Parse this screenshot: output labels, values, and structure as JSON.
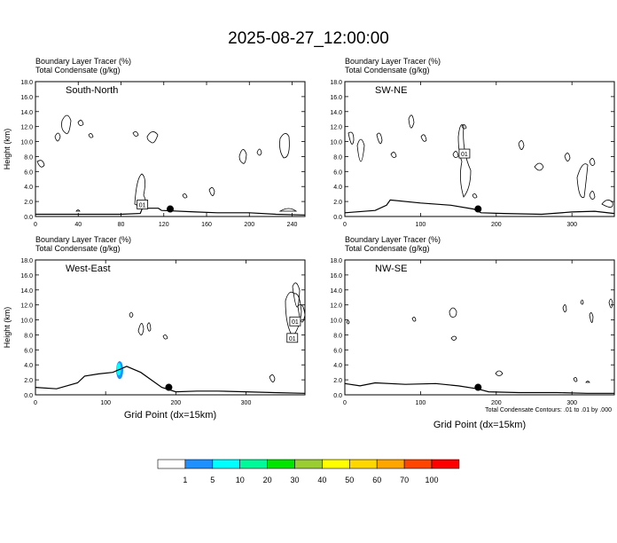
{
  "title": "2025-08-27_12:00:00",
  "footnote": "Total Condensate Contours: .01 to .01 by .000",
  "colorbar": {
    "colors": [
      "#ffffff",
      "#1e90ff",
      "#00ffff",
      "#00fa9a",
      "#00e600",
      "#9acd32",
      "#ffff00",
      "#ffd700",
      "#ffa500",
      "#ff4500",
      "#ff0000"
    ],
    "labels": [
      "1",
      "5",
      "10",
      "20",
      "30",
      "40",
      "50",
      "60",
      "70",
      "100"
    ]
  },
  "chart_data": [
    {
      "type": "contour",
      "header": [
        "Boundary Layer Tracer   (%)",
        "Total Condensate   (g/kg)"
      ],
      "panel_label": "South-North",
      "ylabel": "Height (km)",
      "xlabel": "",
      "xlim": [
        0,
        252
      ],
      "ylim": [
        0,
        18
      ],
      "xticks": [
        0,
        40,
        80,
        120,
        160,
        200,
        240
      ],
      "yticks": [
        "0.0",
        "2.0",
        "4.0",
        "6.0",
        "8.0",
        "10.0",
        "12.0",
        "14.0",
        "16.0",
        "18.0"
      ],
      "marker": {
        "x": 126,
        "y": 1.0
      },
      "boundary_layer": [
        [
          0,
          0.3
        ],
        [
          40,
          0.3
        ],
        [
          80,
          0.3
        ],
        [
          98,
          0.4
        ],
        [
          100,
          1.1
        ],
        [
          115,
          1.1
        ],
        [
          118,
          0.8
        ],
        [
          150,
          0.6
        ],
        [
          170,
          0.5
        ],
        [
          200,
          0.5
        ],
        [
          225,
          0.3
        ],
        [
          252,
          0.2
        ]
      ],
      "boxes": [
        {
          "x": 100,
          "y": 1.6,
          "label": "01"
        }
      ],
      "tracer_fill": []
    },
    {
      "type": "contour",
      "header": [
        "Boundary Layer Tracer   (%)",
        "Total Condensate   (g/kg)"
      ],
      "panel_label": "SW-NE",
      "ylabel": "",
      "xlabel": "",
      "xlim": [
        0,
        356
      ],
      "ylim": [
        0,
        18
      ],
      "xticks": [
        0,
        100,
        200,
        300
      ],
      "yticks": [
        "0.0",
        "2.0",
        "4.0",
        "6.0",
        "8.0",
        "10.0",
        "12.0",
        "14.0",
        "16.0",
        "18.0"
      ],
      "marker": {
        "x": 176,
        "y": 1.0
      },
      "boundary_layer": [
        [
          0,
          0.5
        ],
        [
          40,
          0.8
        ],
        [
          55,
          1.5
        ],
        [
          60,
          2.2
        ],
        [
          100,
          1.8
        ],
        [
          140,
          1.5
        ],
        [
          170,
          1.0
        ],
        [
          180,
          0.5
        ],
        [
          210,
          0.4
        ],
        [
          260,
          0.3
        ],
        [
          300,
          0.6
        ],
        [
          330,
          0.7
        ],
        [
          356,
          0.4
        ]
      ],
      "boxes": [
        {
          "x": 158,
          "y": 8.4,
          "label": "01"
        }
      ],
      "tracer_fill": []
    },
    {
      "type": "contour",
      "header": [
        "Boundary Layer Tracer   (%)",
        "Total Condensate   (g/kg)"
      ],
      "panel_label": "West-East",
      "ylabel": "Height (km)",
      "xlabel": "Grid Point (dx=15km)",
      "xlim": [
        0,
        384
      ],
      "ylim": [
        0,
        18
      ],
      "xticks": [
        0,
        100,
        200,
        300
      ],
      "yticks": [
        "0.0",
        "2.0",
        "4.0",
        "6.0",
        "8.0",
        "10.0",
        "12.0",
        "14.0",
        "16.0",
        "18.0"
      ],
      "marker": {
        "x": 190,
        "y": 1.0
      },
      "boundary_layer": [
        [
          0,
          1.0
        ],
        [
          30,
          0.8
        ],
        [
          60,
          1.6
        ],
        [
          70,
          2.5
        ],
        [
          90,
          2.8
        ],
        [
          110,
          3.0
        ],
        [
          130,
          3.8
        ],
        [
          150,
          3.0
        ],
        [
          165,
          2.0
        ],
        [
          180,
          1.0
        ],
        [
          200,
          0.4
        ],
        [
          230,
          0.5
        ],
        [
          260,
          0.5
        ],
        [
          300,
          0.4
        ],
        [
          340,
          0.3
        ],
        [
          384,
          0.2
        ]
      ],
      "boxes": [
        {
          "x": 370,
          "y": 9.8,
          "label": "01"
        },
        {
          "x": 366,
          "y": 7.6,
          "label": "01"
        }
      ],
      "tracer_fill": [
        {
          "x": 120,
          "y": 3.3,
          "level": "5-10"
        }
      ]
    },
    {
      "type": "contour",
      "header": [
        "Boundary Layer Tracer   (%)",
        "Total Condensate   (g/kg)"
      ],
      "panel_label": "NW-SE",
      "ylabel": "",
      "xlabel": "Grid Point (dx=15km)",
      "xlim": [
        0,
        356
      ],
      "ylim": [
        0,
        18
      ],
      "xticks": [
        0,
        100,
        200,
        300
      ],
      "yticks": [
        "0.0",
        "2.0",
        "4.0",
        "6.0",
        "8.0",
        "10.0",
        "12.0",
        "14.0",
        "16.0",
        "18.0"
      ],
      "marker": {
        "x": 176,
        "y": 1.0
      },
      "boundary_layer": [
        [
          0,
          1.5
        ],
        [
          20,
          1.2
        ],
        [
          40,
          1.6
        ],
        [
          80,
          1.4
        ],
        [
          120,
          1.5
        ],
        [
          150,
          1.2
        ],
        [
          175,
          0.8
        ],
        [
          190,
          0.4
        ],
        [
          230,
          0.3
        ],
        [
          280,
          0.3
        ],
        [
          320,
          0.2
        ],
        [
          356,
          0.2
        ]
      ],
      "boxes": [],
      "tracer_fill": []
    }
  ]
}
